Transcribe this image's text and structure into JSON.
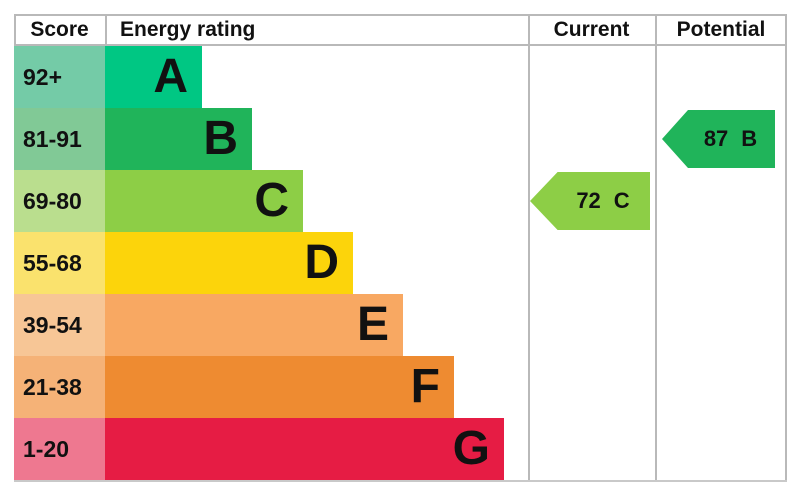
{
  "header": {
    "score": "Score",
    "energy_rating": "Energy rating",
    "current": "Current",
    "potential": "Potential"
  },
  "bands": [
    {
      "score_range": "92+",
      "letter": "A",
      "bar_color": "#00c783",
      "score_bg": "#74cba7"
    },
    {
      "score_range": "81-91",
      "letter": "B",
      "bar_color": "#20b45a",
      "score_bg": "#81c996"
    },
    {
      "score_range": "69-80",
      "letter": "C",
      "bar_color": "#8dce46",
      "score_bg": "#bade8e"
    },
    {
      "score_range": "55-68",
      "letter": "D",
      "bar_color": "#fcd40b",
      "score_bg": "#fae26d"
    },
    {
      "score_range": "39-54",
      "letter": "E",
      "bar_color": "#f8a862",
      "score_bg": "#f7c696"
    },
    {
      "score_range": "21-38",
      "letter": "F",
      "bar_color": "#ee8b31",
      "score_bg": "#f5b277"
    },
    {
      "score_range": "1-20",
      "letter": "G",
      "bar_color": "#e61c44",
      "score_bg": "#ee7890"
    }
  ],
  "current_arrow": {
    "score": "72",
    "rating": "C",
    "color": "#8dce46"
  },
  "potential_arrow": {
    "score": "87",
    "rating": "B",
    "color": "#20b45a"
  },
  "chart_data": {
    "type": "bar",
    "title": "EPC energy efficiency rating chart",
    "columns": [
      "Score",
      "Energy rating",
      "Current",
      "Potential"
    ],
    "categories": [
      "A",
      "B",
      "C",
      "D",
      "E",
      "F",
      "G"
    ],
    "score_ranges": [
      "92+",
      "81-91",
      "69-80",
      "55-68",
      "39-54",
      "21-38",
      "1-20"
    ],
    "bar_lengths_relative": [
      1,
      2,
      3,
      4,
      5,
      6,
      7
    ],
    "band_colors": [
      "#00c783",
      "#20b45a",
      "#8dce46",
      "#fcd40b",
      "#f8a862",
      "#ee8b31",
      "#e61c44"
    ],
    "current": {
      "score": 72,
      "rating": "C"
    },
    "potential": {
      "score": 87,
      "rating": "B"
    },
    "legend_position": "none",
    "grid": "column dividers only"
  }
}
